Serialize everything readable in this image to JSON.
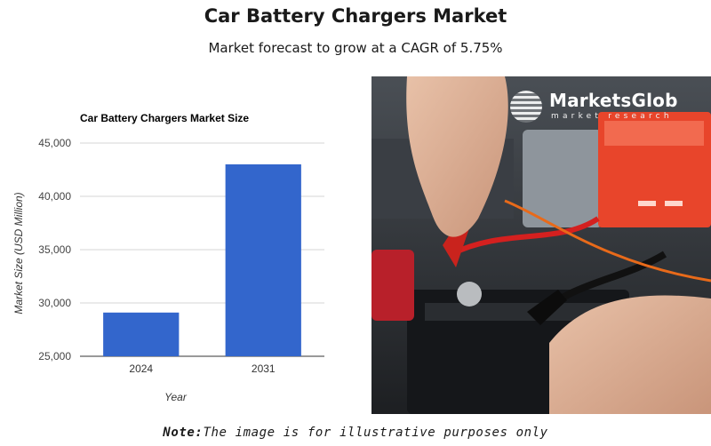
{
  "header": {
    "title": "Car Battery Chargers Market",
    "subtitle": "Market forecast to grow at a CAGR of 5.75%"
  },
  "chart_data": {
    "type": "bar",
    "title": "Car Battery Chargers Market Size",
    "xlabel": "Year",
    "ylabel": "Market Size (USD Million)",
    "categories": [
      "2024",
      "2031"
    ],
    "values": [
      29100,
      43000
    ],
    "ylim": [
      25000,
      45000
    ],
    "yticks": [
      "25,000",
      "30,000",
      "35,000",
      "40,000",
      "45,000"
    ],
    "grid": true,
    "bar_color": "#3366cc"
  },
  "photo": {
    "logo_name": "MarketsGlob",
    "logo_tagline": "market research",
    "charger_color": "#e8452b"
  },
  "footer": {
    "note_label": "Note:",
    "note_text": "The image is for illustrative purposes only"
  }
}
